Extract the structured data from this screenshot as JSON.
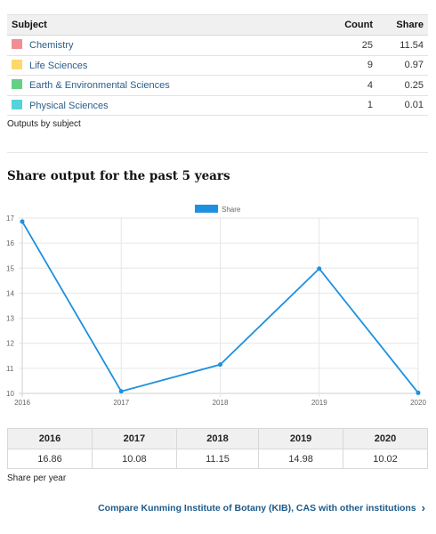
{
  "subjects_table": {
    "headers": {
      "subject": "Subject",
      "count": "Count",
      "share": "Share"
    },
    "rows": [
      {
        "subject": "Chemistry",
        "count": "25",
        "share": "11.54",
        "color": "#f08d95"
      },
      {
        "subject": "Life Sciences",
        "count": "9",
        "share": "0.97",
        "color": "#fdd86b"
      },
      {
        "subject": "Earth & Environmental Sciences",
        "count": "4",
        "share": "0.25",
        "color": "#66cf86"
      },
      {
        "subject": "Physical Sciences",
        "count": "1",
        "share": "0.01",
        "color": "#54d3dc"
      }
    ],
    "caption": "Outputs by subject"
  },
  "share_section": {
    "title": "Share output for the past 5 years"
  },
  "chart_data": {
    "type": "line",
    "x": [
      "2016",
      "2017",
      "2018",
      "2019",
      "2020"
    ],
    "series": [
      {
        "name": "Share",
        "values": [
          16.86,
          10.08,
          11.15,
          14.98,
          10.02
        ],
        "color": "#1e90e0"
      }
    ],
    "yticks": [
      "10",
      "11",
      "12",
      "13",
      "14",
      "15",
      "16",
      "17"
    ],
    "ylim": [
      10,
      17
    ],
    "grid": true,
    "legend": "top-center"
  },
  "year_table": {
    "headers": [
      "2016",
      "2017",
      "2018",
      "2019",
      "2020"
    ],
    "values": [
      "16.86",
      "10.08",
      "11.15",
      "14.98",
      "10.02"
    ],
    "caption": "Share per year"
  },
  "compare_link": {
    "label": "Compare Kunming Institute of Botany (KIB), CAS with other institutions",
    "icon": "chevron-right-icon"
  }
}
